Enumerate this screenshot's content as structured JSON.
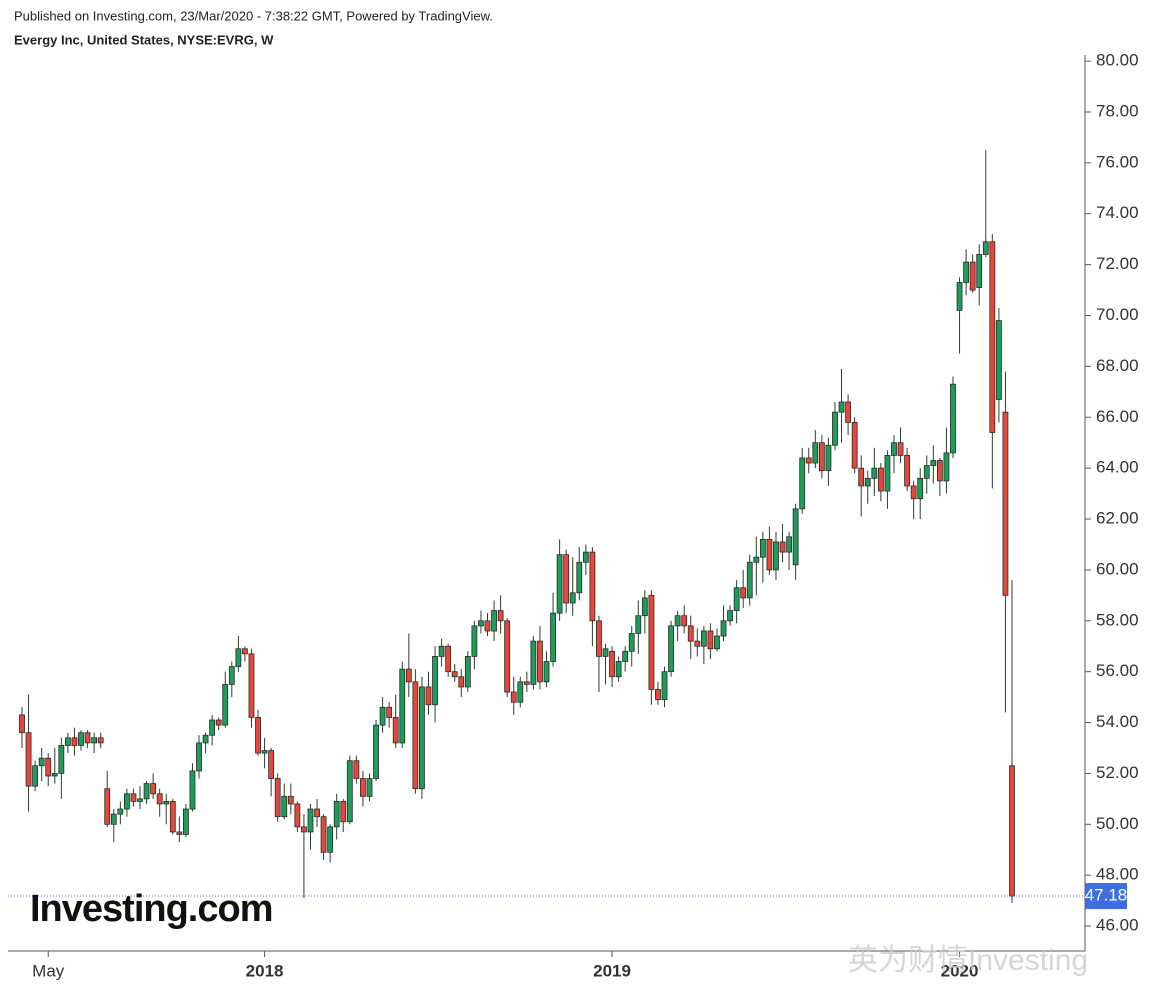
{
  "header": {
    "published": "Published on Investing.com, 23/Mar/2020 - 7:38:22 GMT, Powered by TradingView.",
    "symbol": "Evergy Inc, United States, NYSE:EVRG, W"
  },
  "logo": "Investing.com",
  "watermark": "英为财情Investing",
  "chart_data": {
    "type": "candlestick",
    "categories": [
      null,
      null,
      null,
      null,
      "May",
      null,
      null,
      null,
      null,
      null,
      null,
      null,
      null,
      null,
      null,
      null,
      null,
      null,
      null,
      null,
      null,
      null,
      null,
      null,
      null,
      null,
      null,
      null,
      null,
      null,
      null,
      null,
      null,
      null,
      null,
      null,
      null,
      "2018",
      null,
      null,
      null,
      null,
      null,
      null,
      null,
      null,
      null,
      null,
      null,
      null,
      null,
      null,
      null,
      null,
      null,
      null,
      null,
      null,
      null,
      null,
      null,
      null,
      null,
      null,
      null,
      null,
      null,
      null,
      null,
      null,
      null,
      null,
      null,
      null,
      null,
      null,
      null,
      null,
      null,
      null,
      null,
      null,
      null,
      null,
      null,
      null,
      null,
      null,
      null,
      null,
      "2019",
      null,
      null,
      null,
      null,
      null,
      null,
      null,
      null,
      null,
      null,
      null,
      null,
      null,
      null,
      null,
      null,
      null,
      null,
      null,
      null,
      null,
      null,
      null,
      null,
      null,
      null,
      null,
      null,
      null,
      null,
      null,
      null,
      null,
      null,
      null,
      null,
      null,
      null,
      null,
      null,
      null,
      null,
      null,
      null,
      null,
      null,
      null,
      null,
      null,
      null,
      null,
      null,
      "2020",
      null,
      null,
      null,
      null,
      null,
      null,
      null,
      null,
      null
    ],
    "ohlc": [
      [
        54.3,
        54.6,
        53.0,
        53.6
      ],
      [
        53.6,
        55.1,
        50.5,
        51.5
      ],
      [
        51.5,
        52.5,
        51.3,
        52.3
      ],
      [
        52.3,
        53.0,
        51.7,
        52.6
      ],
      [
        52.6,
        52.8,
        51.5,
        51.9
      ],
      [
        51.9,
        53.0,
        51.6,
        52.0
      ],
      [
        52.0,
        53.4,
        51.0,
        53.1
      ],
      [
        53.1,
        53.6,
        52.8,
        53.4
      ],
      [
        53.4,
        53.8,
        52.7,
        53.1
      ],
      [
        53.1,
        53.7,
        52.9,
        53.6
      ],
      [
        53.6,
        53.7,
        53.0,
        53.2
      ],
      [
        53.2,
        53.6,
        52.8,
        53.4
      ],
      [
        53.4,
        53.6,
        53.0,
        53.2
      ],
      [
        51.4,
        52.1,
        49.9,
        50.0
      ],
      [
        50.0,
        50.6,
        49.3,
        50.4
      ],
      [
        50.4,
        50.9,
        50.0,
        50.6
      ],
      [
        50.6,
        51.4,
        50.3,
        51.2
      ],
      [
        51.2,
        51.4,
        50.7,
        50.9
      ],
      [
        50.9,
        51.5,
        50.6,
        51.0
      ],
      [
        51.0,
        51.7,
        50.8,
        51.6
      ],
      [
        51.6,
        52.0,
        51.0,
        51.2
      ],
      [
        51.2,
        51.4,
        50.3,
        50.8
      ],
      [
        50.8,
        51.2,
        50.0,
        50.9
      ],
      [
        50.9,
        51.0,
        49.6,
        49.7
      ],
      [
        49.7,
        50.3,
        49.3,
        49.6
      ],
      [
        49.6,
        50.8,
        49.5,
        50.6
      ],
      [
        50.6,
        52.4,
        50.5,
        52.1
      ],
      [
        52.1,
        53.5,
        51.8,
        53.2
      ],
      [
        53.2,
        53.6,
        52.8,
        53.5
      ],
      [
        53.5,
        54.3,
        53.1,
        54.1
      ],
      [
        54.1,
        54.2,
        53.7,
        53.9
      ],
      [
        53.9,
        56.0,
        53.8,
        55.5
      ],
      [
        55.5,
        56.4,
        55.0,
        56.2
      ],
      [
        56.2,
        57.4,
        56.0,
        56.9
      ],
      [
        56.9,
        57.0,
        56.4,
        56.7
      ],
      [
        56.7,
        56.9,
        53.8,
        54.2
      ],
      [
        54.2,
        54.5,
        52.7,
        52.8
      ],
      [
        52.8,
        53.4,
        52.2,
        52.9
      ],
      [
        52.9,
        53.0,
        51.1,
        51.8
      ],
      [
        51.8,
        52.0,
        50.1,
        50.3
      ],
      [
        50.3,
        51.6,
        50.2,
        51.1
      ],
      [
        51.1,
        51.6,
        50.4,
        50.8
      ],
      [
        50.8,
        50.9,
        49.7,
        49.9
      ],
      [
        49.9,
        50.4,
        47.1,
        49.7
      ],
      [
        49.7,
        50.8,
        49.0,
        50.6
      ],
      [
        50.6,
        51.0,
        49.9,
        50.3
      ],
      [
        50.3,
        50.4,
        48.6,
        48.9
      ],
      [
        48.9,
        50.0,
        48.5,
        49.9
      ],
      [
        49.9,
        51.2,
        49.4,
        50.9
      ],
      [
        50.9,
        51.0,
        49.7,
        50.1
      ],
      [
        50.1,
        52.7,
        50.0,
        52.5
      ],
      [
        52.5,
        52.7,
        51.6,
        51.8
      ],
      [
        51.8,
        52.1,
        50.7,
        51.1
      ],
      [
        51.1,
        52.0,
        50.9,
        51.8
      ],
      [
        51.8,
        54.1,
        51.7,
        53.9
      ],
      [
        53.9,
        55.0,
        53.6,
        54.6
      ],
      [
        54.6,
        54.8,
        53.8,
        54.2
      ],
      [
        54.2,
        55.1,
        53.0,
        53.2
      ],
      [
        53.2,
        56.4,
        53.0,
        56.1
      ],
      [
        56.1,
        57.5,
        55.0,
        55.6
      ],
      [
        55.6,
        56.1,
        51.2,
        51.4
      ],
      [
        51.4,
        55.8,
        51.0,
        55.4
      ],
      [
        55.4,
        56.0,
        54.3,
        54.7
      ],
      [
        54.7,
        57.0,
        54.0,
        56.6
      ],
      [
        56.6,
        57.3,
        56.2,
        57.0
      ],
      [
        57.0,
        57.1,
        55.8,
        56.0
      ],
      [
        56.0,
        56.3,
        55.6,
        55.8
      ],
      [
        55.8,
        56.1,
        55.0,
        55.4
      ],
      [
        55.4,
        56.8,
        55.2,
        56.6
      ],
      [
        56.6,
        58.0,
        56.1,
        57.8
      ],
      [
        57.8,
        58.4,
        57.5,
        58.0
      ],
      [
        58.0,
        58.3,
        57.4,
        57.6
      ],
      [
        57.6,
        58.8,
        57.2,
        58.4
      ],
      [
        58.4,
        59.0,
        57.5,
        58.0
      ],
      [
        58.0,
        58.1,
        55.0,
        55.2
      ],
      [
        55.2,
        55.8,
        54.3,
        54.8
      ],
      [
        54.8,
        55.8,
        54.6,
        55.6
      ],
      [
        55.6,
        56.0,
        55.2,
        55.5
      ],
      [
        55.5,
        57.4,
        55.3,
        57.2
      ],
      [
        57.2,
        57.8,
        55.3,
        55.6
      ],
      [
        55.6,
        56.8,
        55.4,
        56.4
      ],
      [
        56.4,
        59.1,
        56.2,
        58.3
      ],
      [
        58.3,
        61.2,
        58.0,
        60.6
      ],
      [
        60.6,
        60.8,
        58.3,
        58.7
      ],
      [
        58.7,
        60.5,
        58.2,
        59.1
      ],
      [
        59.1,
        60.9,
        58.8,
        60.3
      ],
      [
        60.3,
        61.0,
        59.8,
        60.7
      ],
      [
        60.7,
        60.9,
        57.0,
        58.0
      ],
      [
        58.0,
        58.2,
        55.2,
        56.6
      ],
      [
        56.6,
        57.1,
        55.5,
        56.9
      ],
      [
        56.8,
        57.0,
        55.4,
        55.8
      ],
      [
        55.8,
        56.6,
        55.6,
        56.4
      ],
      [
        56.4,
        57.0,
        56.0,
        56.8
      ],
      [
        56.8,
        57.8,
        56.2,
        57.5
      ],
      [
        57.5,
        58.8,
        56.7,
        58.2
      ],
      [
        58.2,
        59.2,
        57.5,
        58.9
      ],
      [
        59.0,
        59.2,
        54.7,
        55.3
      ],
      [
        55.3,
        55.6,
        54.7,
        54.9
      ],
      [
        54.9,
        56.2,
        54.6,
        56.0
      ],
      [
        56.0,
        58.0,
        55.8,
        57.8
      ],
      [
        57.8,
        58.4,
        57.2,
        58.2
      ],
      [
        58.2,
        58.6,
        57.5,
        57.8
      ],
      [
        57.8,
        58.2,
        56.5,
        57.2
      ],
      [
        57.2,
        57.7,
        56.6,
        57.0
      ],
      [
        57.0,
        57.8,
        56.3,
        57.6
      ],
      [
        57.6,
        57.9,
        56.5,
        56.9
      ],
      [
        56.9,
        57.7,
        56.8,
        57.4
      ],
      [
        57.4,
        58.6,
        57.2,
        58.0
      ],
      [
        58.0,
        58.6,
        57.8,
        58.4
      ],
      [
        58.4,
        59.6,
        57.9,
        59.3
      ],
      [
        59.3,
        60.0,
        58.5,
        58.9
      ],
      [
        58.9,
        60.6,
        58.6,
        60.3
      ],
      [
        60.3,
        61.3,
        59.0,
        60.5
      ],
      [
        60.5,
        61.5,
        59.5,
        61.2
      ],
      [
        61.2,
        61.7,
        59.8,
        60.0
      ],
      [
        60.0,
        61.5,
        59.6,
        61.1
      ],
      [
        61.1,
        61.8,
        60.3,
        60.7
      ],
      [
        60.7,
        61.5,
        60.0,
        61.3
      ],
      [
        60.2,
        62.6,
        59.6,
        62.4
      ],
      [
        62.4,
        64.8,
        62.2,
        64.4
      ],
      [
        64.4,
        64.8,
        63.8,
        64.2
      ],
      [
        64.2,
        65.5,
        64.0,
        65.0
      ],
      [
        65.0,
        65.3,
        63.6,
        63.9
      ],
      [
        63.9,
        65.2,
        63.3,
        64.9
      ],
      [
        64.9,
        66.6,
        64.7,
        66.2
      ],
      [
        66.2,
        67.9,
        65.0,
        66.6
      ],
      [
        66.6,
        66.9,
        65.3,
        65.8
      ],
      [
        65.8,
        66.0,
        63.8,
        64.0
      ],
      [
        64.0,
        64.5,
        62.1,
        63.3
      ],
      [
        63.3,
        63.9,
        62.6,
        63.6
      ],
      [
        63.6,
        64.8,
        62.9,
        64.0
      ],
      [
        64.0,
        64.2,
        62.7,
        63.1
      ],
      [
        63.1,
        64.7,
        62.4,
        64.5
      ],
      [
        64.5,
        65.3,
        63.8,
        65.0
      ],
      [
        65.0,
        65.6,
        64.2,
        64.5
      ],
      [
        64.5,
        64.8,
        63.1,
        63.3
      ],
      [
        63.3,
        63.5,
        62.0,
        62.8
      ],
      [
        62.8,
        64.0,
        62.0,
        63.6
      ],
      [
        63.6,
        64.5,
        63.0,
        64.1
      ],
      [
        64.1,
        64.9,
        63.4,
        64.3
      ],
      [
        64.3,
        64.4,
        62.9,
        63.5
      ],
      [
        63.5,
        65.6,
        63.0,
        64.6
      ],
      [
        64.6,
        67.6,
        64.4,
        67.3
      ],
      [
        70.2,
        71.5,
        68.5,
        71.3
      ],
      [
        71.3,
        72.6,
        70.8,
        72.1
      ],
      [
        72.1,
        72.4,
        70.9,
        71.0
      ],
      [
        71.1,
        72.8,
        70.4,
        72.4
      ],
      [
        72.4,
        76.5,
        72.3,
        72.9
      ],
      [
        72.9,
        73.2,
        63.2,
        65.4
      ],
      [
        66.7,
        70.3,
        65.8,
        69.8
      ],
      [
        66.2,
        67.8,
        54.4,
        59.0
      ],
      [
        52.3,
        59.6,
        46.9,
        47.18
      ]
    ],
    "up_color": "#1e9c5a",
    "down_color": "#e5483b",
    "ylim": [
      45.02,
      80.24
    ],
    "yticks": [
      {
        "value": 46,
        "label": "46.00"
      },
      {
        "value": 48,
        "label": "48.00"
      },
      {
        "value": 50,
        "label": "50.00"
      },
      {
        "value": 52,
        "label": "52.00"
      },
      {
        "value": 54,
        "label": "54.00"
      },
      {
        "value": 56,
        "label": "56.00"
      },
      {
        "value": 58,
        "label": "58.00"
      },
      {
        "value": 60,
        "label": "60.00"
      },
      {
        "value": 62,
        "label": "62.00"
      },
      {
        "value": 64,
        "label": "64.00"
      },
      {
        "value": 66,
        "label": "66.00"
      },
      {
        "value": 68,
        "label": "68.00"
      },
      {
        "value": 70,
        "label": "70.00"
      },
      {
        "value": 72,
        "label": "72.00"
      },
      {
        "value": 74,
        "label": "74.00"
      },
      {
        "value": 76,
        "label": "76.00"
      },
      {
        "value": 78,
        "label": "78.00"
      },
      {
        "value": 80,
        "label": "80.00"
      }
    ],
    "last_price": 47.18,
    "last_price_color": "#3d6fe0"
  }
}
